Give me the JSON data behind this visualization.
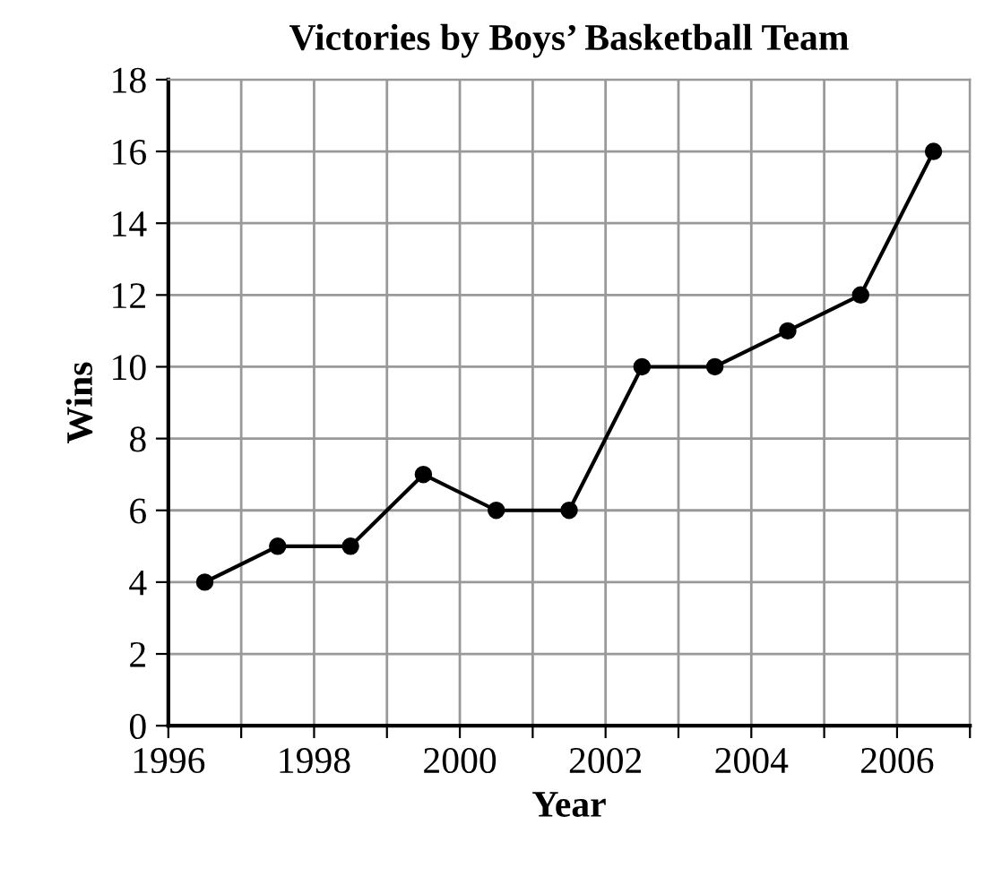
{
  "chart_data": {
    "type": "line",
    "title": "Victories by Boys’ Basketball Team",
    "xlabel": "Year",
    "ylabel": "Wins",
    "x": [
      1996.5,
      1997.5,
      1998.5,
      1999.5,
      2000.5,
      2001.5,
      2002.5,
      2003.5,
      2004.5,
      2005.5,
      2006.5
    ],
    "series": [
      {
        "color": "#000000",
        "values": [
          4,
          5,
          5,
          7,
          6,
          6,
          10,
          10,
          11,
          12,
          16
        ]
      }
    ],
    "xlim": [
      1996,
      2007
    ],
    "ylim": [
      0,
      18
    ],
    "xticks": [
      1996,
      {
        "value": 1997,
        "label": null
      },
      1998,
      {
        "value": 1999,
        "label": null
      },
      2000,
      {
        "value": 2001,
        "label": null
      },
      2002,
      {
        "value": 2003,
        "label": null
      },
      2004,
      {
        "value": 2005,
        "label": null
      },
      2006,
      {
        "value": 2007,
        "label": null
      }
    ],
    "yticks": [
      0,
      2,
      4,
      6,
      8,
      10,
      12,
      14,
      16,
      18
    ],
    "grid": true,
    "marker": "circle",
    "line_style": "solid"
  }
}
